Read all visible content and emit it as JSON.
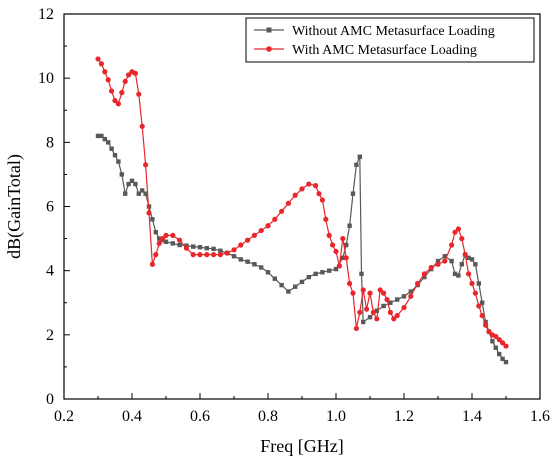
{
  "chart_data": {
    "type": "line",
    "title": "",
    "xlabel": "Freq [GHz]",
    "ylabel": "dB(GainTotal)",
    "xlim": [
      0.2,
      1.6
    ],
    "ylim": [
      0,
      12
    ],
    "xticks": [
      0.2,
      0.4,
      0.6,
      0.8,
      1.0,
      1.2,
      1.4,
      1.6
    ],
    "xtick_labels": [
      "0.2",
      "0.4",
      "0.6",
      "0.8",
      "1.0",
      "1.2",
      "1.4",
      "1.6"
    ],
    "yticks": [
      0,
      2,
      4,
      6,
      8,
      10,
      12
    ],
    "ytick_labels": [
      "0",
      "2",
      "4",
      "6",
      "8",
      "10",
      "12"
    ],
    "grid": false,
    "legend_position": "top-right",
    "series": [
      {
        "name": "Without AMC Metasurface Loading",
        "color": "#595959",
        "marker": "square",
        "points": [
          [
            0.3,
            8.2
          ],
          [
            0.31,
            8.2
          ],
          [
            0.32,
            8.1
          ],
          [
            0.33,
            8.0
          ],
          [
            0.34,
            7.8
          ],
          [
            0.35,
            7.6
          ],
          [
            0.36,
            7.4
          ],
          [
            0.37,
            7.0
          ],
          [
            0.38,
            6.4
          ],
          [
            0.39,
            6.7
          ],
          [
            0.4,
            6.8
          ],
          [
            0.41,
            6.7
          ],
          [
            0.42,
            6.4
          ],
          [
            0.43,
            6.5
          ],
          [
            0.44,
            6.4
          ],
          [
            0.45,
            6.0
          ],
          [
            0.46,
            5.6
          ],
          [
            0.47,
            5.2
          ],
          [
            0.48,
            5.0
          ],
          [
            0.49,
            4.95
          ],
          [
            0.5,
            4.9
          ],
          [
            0.52,
            4.85
          ],
          [
            0.54,
            4.8
          ],
          [
            0.56,
            4.78
          ],
          [
            0.58,
            4.75
          ],
          [
            0.6,
            4.73
          ],
          [
            0.62,
            4.7
          ],
          [
            0.64,
            4.68
          ],
          [
            0.66,
            4.62
          ],
          [
            0.68,
            4.55
          ],
          [
            0.7,
            4.45
          ],
          [
            0.72,
            4.35
          ],
          [
            0.74,
            4.28
          ],
          [
            0.76,
            4.2
          ],
          [
            0.78,
            4.1
          ],
          [
            0.8,
            3.95
          ],
          [
            0.82,
            3.75
          ],
          [
            0.84,
            3.55
          ],
          [
            0.86,
            3.35
          ],
          [
            0.88,
            3.5
          ],
          [
            0.9,
            3.65
          ],
          [
            0.92,
            3.8
          ],
          [
            0.94,
            3.9
          ],
          [
            0.96,
            3.95
          ],
          [
            0.98,
            4.0
          ],
          [
            1.0,
            4.05
          ],
          [
            1.02,
            4.4
          ],
          [
            1.03,
            4.8
          ],
          [
            1.04,
            5.4
          ],
          [
            1.05,
            6.4
          ],
          [
            1.06,
            7.3
          ],
          [
            1.07,
            7.55
          ],
          [
            1.075,
            3.9
          ],
          [
            1.08,
            2.4
          ],
          [
            1.1,
            2.55
          ],
          [
            1.12,
            2.75
          ],
          [
            1.14,
            2.9
          ],
          [
            1.16,
            3.0
          ],
          [
            1.18,
            3.1
          ],
          [
            1.2,
            3.2
          ],
          [
            1.22,
            3.35
          ],
          [
            1.24,
            3.55
          ],
          [
            1.26,
            3.8
          ],
          [
            1.28,
            4.05
          ],
          [
            1.3,
            4.3
          ],
          [
            1.32,
            4.45
          ],
          [
            1.34,
            4.3
          ],
          [
            1.35,
            3.9
          ],
          [
            1.36,
            3.85
          ],
          [
            1.37,
            4.2
          ],
          [
            1.38,
            4.5
          ],
          [
            1.39,
            4.4
          ],
          [
            1.4,
            4.35
          ],
          [
            1.41,
            4.2
          ],
          [
            1.42,
            3.6
          ],
          [
            1.43,
            3.0
          ],
          [
            1.44,
            2.4
          ],
          [
            1.45,
            2.1
          ],
          [
            1.46,
            1.8
          ],
          [
            1.47,
            1.6
          ],
          [
            1.48,
            1.4
          ],
          [
            1.49,
            1.25
          ],
          [
            1.5,
            1.15
          ]
        ]
      },
      {
        "name": "With AMC Metasurface Loading",
        "color": "#e8262b",
        "marker": "circle",
        "points": [
          [
            0.3,
            10.6
          ],
          [
            0.31,
            10.45
          ],
          [
            0.32,
            10.2
          ],
          [
            0.33,
            9.95
          ],
          [
            0.34,
            9.6
          ],
          [
            0.35,
            9.3
          ],
          [
            0.36,
            9.2
          ],
          [
            0.37,
            9.55
          ],
          [
            0.38,
            9.9
          ],
          [
            0.39,
            10.1
          ],
          [
            0.4,
            10.2
          ],
          [
            0.41,
            10.15
          ],
          [
            0.42,
            9.5
          ],
          [
            0.43,
            8.5
          ],
          [
            0.44,
            7.3
          ],
          [
            0.45,
            5.8
          ],
          [
            0.46,
            4.2
          ],
          [
            0.47,
            4.5
          ],
          [
            0.48,
            4.85
          ],
          [
            0.49,
            5.0
          ],
          [
            0.5,
            5.1
          ],
          [
            0.52,
            5.1
          ],
          [
            0.54,
            4.95
          ],
          [
            0.56,
            4.7
          ],
          [
            0.58,
            4.5
          ],
          [
            0.6,
            4.5
          ],
          [
            0.62,
            4.5
          ],
          [
            0.64,
            4.5
          ],
          [
            0.66,
            4.5
          ],
          [
            0.68,
            4.55
          ],
          [
            0.7,
            4.65
          ],
          [
            0.72,
            4.8
          ],
          [
            0.74,
            4.95
          ],
          [
            0.76,
            5.1
          ],
          [
            0.78,
            5.25
          ],
          [
            0.8,
            5.4
          ],
          [
            0.82,
            5.6
          ],
          [
            0.84,
            5.85
          ],
          [
            0.86,
            6.1
          ],
          [
            0.88,
            6.35
          ],
          [
            0.9,
            6.55
          ],
          [
            0.92,
            6.7
          ],
          [
            0.94,
            6.65
          ],
          [
            0.95,
            6.4
          ],
          [
            0.96,
            6.2
          ],
          [
            0.97,
            5.6
          ],
          [
            0.98,
            5.1
          ],
          [
            0.99,
            4.8
          ],
          [
            1.0,
            4.6
          ],
          [
            1.01,
            4.15
          ],
          [
            1.02,
            5.0
          ],
          [
            1.03,
            4.4
          ],
          [
            1.04,
            3.6
          ],
          [
            1.05,
            3.3
          ],
          [
            1.06,
            2.2
          ],
          [
            1.07,
            2.7
          ],
          [
            1.08,
            3.4
          ],
          [
            1.09,
            2.8
          ],
          [
            1.1,
            3.3
          ],
          [
            1.11,
            2.7
          ],
          [
            1.12,
            2.5
          ],
          [
            1.13,
            3.4
          ],
          [
            1.14,
            3.3
          ],
          [
            1.15,
            3.1
          ],
          [
            1.16,
            2.7
          ],
          [
            1.17,
            2.5
          ],
          [
            1.18,
            2.6
          ],
          [
            1.2,
            2.85
          ],
          [
            1.22,
            3.2
          ],
          [
            1.24,
            3.6
          ],
          [
            1.26,
            3.9
          ],
          [
            1.28,
            4.1
          ],
          [
            1.3,
            4.2
          ],
          [
            1.32,
            4.3
          ],
          [
            1.34,
            4.8
          ],
          [
            1.35,
            5.2
          ],
          [
            1.36,
            5.3
          ],
          [
            1.37,
            5.0
          ],
          [
            1.38,
            4.5
          ],
          [
            1.39,
            3.9
          ],
          [
            1.4,
            3.6
          ],
          [
            1.41,
            3.3
          ],
          [
            1.42,
            2.9
          ],
          [
            1.43,
            2.6
          ],
          [
            1.44,
            2.3
          ],
          [
            1.45,
            2.1
          ],
          [
            1.46,
            2.0
          ],
          [
            1.47,
            1.95
          ],
          [
            1.48,
            1.85
          ],
          [
            1.49,
            1.75
          ],
          [
            1.5,
            1.65
          ]
        ]
      }
    ]
  }
}
